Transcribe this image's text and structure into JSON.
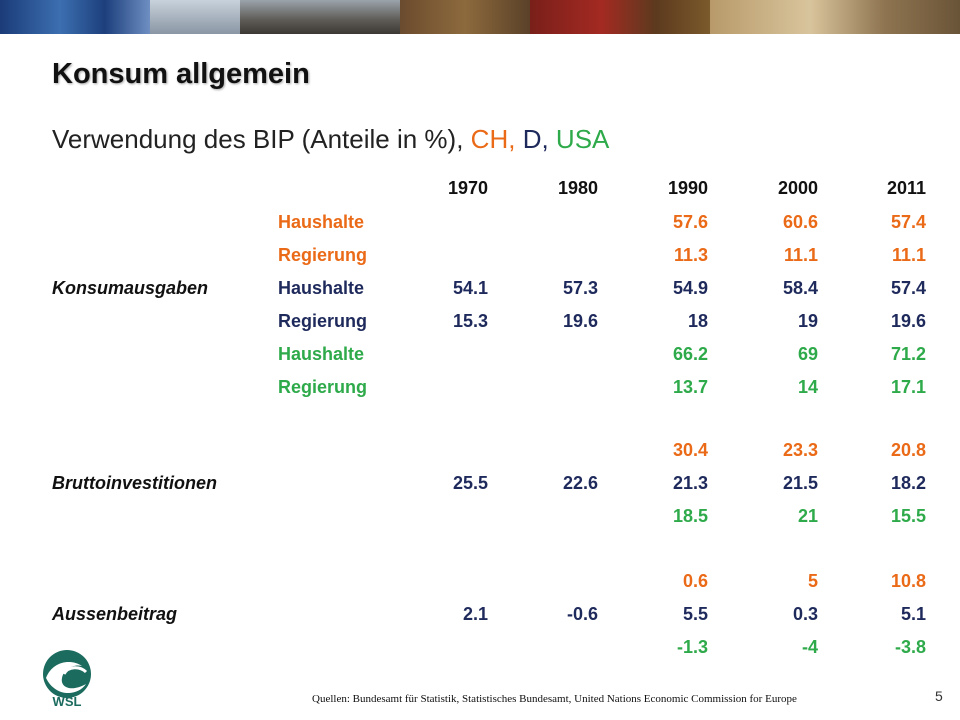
{
  "slide": {
    "title": "Konsum allgemein",
    "subtitle": {
      "main": "Verwendung des BIP (Anteile in %),",
      "ch": "CH,",
      "d": "D,",
      "usa": "USA"
    },
    "sources": "Quellen: Bundesamt für Statistik, Statistisches Bundesamt, United Nations Economic Commission for Europe",
    "page_number": "5",
    "logo_text": "WSL"
  },
  "colors": {
    "ch": "#ea6a17",
    "d": "#1f2a5c",
    "usa": "#2eaa4a"
  },
  "table": {
    "years": [
      "1970",
      "1980",
      "1990",
      "2000",
      "2011"
    ],
    "categories": {
      "konsum": "Konsumausgaben",
      "brutto": "Bruttoinvestitionen",
      "aussen": "Aussenbeitrag"
    },
    "rows": [
      {
        "label": "Haushalte",
        "values": [
          "",
          "",
          "57.6",
          "60.6",
          "57.4"
        ]
      },
      {
        "label": "Regierung",
        "values": [
          "",
          "",
          "11.3",
          "11.1",
          "11.1"
        ]
      },
      {
        "label": "Haushalte",
        "values": [
          "54.1",
          "57.3",
          "54.9",
          "58.4",
          "57.4"
        ]
      },
      {
        "label": "Regierung",
        "values": [
          "15.3",
          "19.6",
          "18",
          "19",
          "19.6"
        ]
      },
      {
        "label": "Haushalte",
        "values": [
          "",
          "",
          "66.2",
          "69",
          "71.2"
        ]
      },
      {
        "label": "Regierung",
        "values": [
          "",
          "",
          "13.7",
          "14",
          "17.1"
        ]
      },
      {
        "label": "",
        "values": [
          "",
          "",
          "30.4",
          "23.3",
          "20.8"
        ]
      },
      {
        "label": "",
        "values": [
          "25.5",
          "22.6",
          "21.3",
          "21.5",
          "18.2"
        ]
      },
      {
        "label": "",
        "values": [
          "",
          "",
          "18.5",
          "21",
          "15.5"
        ]
      },
      {
        "label": "",
        "values": [
          "",
          "",
          "0.6",
          "5",
          "10.8"
        ]
      },
      {
        "label": "",
        "values": [
          "2.1",
          "-0.6",
          "5.5",
          "0.3",
          "5.1"
        ]
      },
      {
        "label": "",
        "values": [
          "",
          "",
          "-1.3",
          "-4",
          "-3.8"
        ]
      }
    ]
  }
}
